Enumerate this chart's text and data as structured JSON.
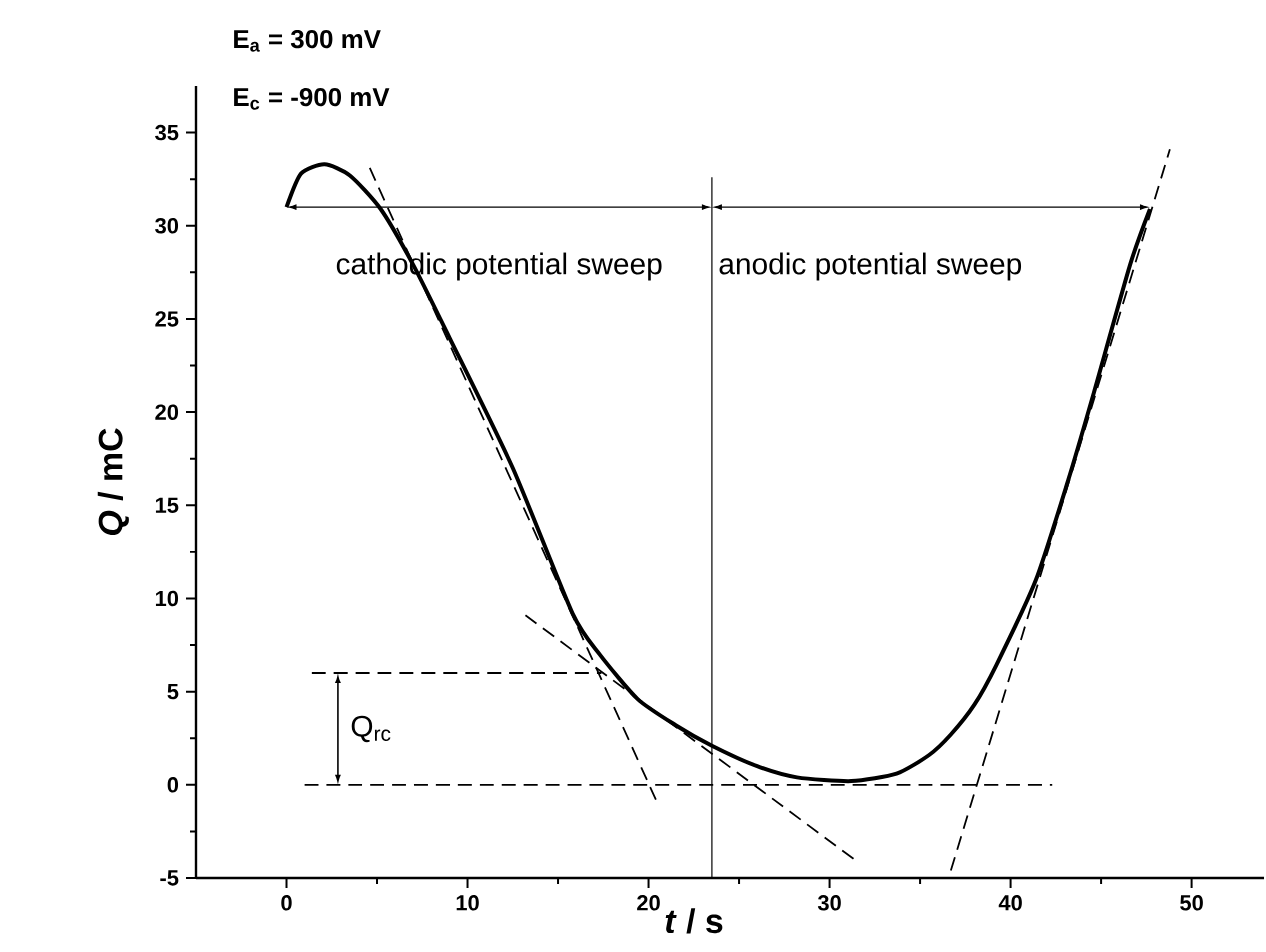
{
  "chart_data": {
    "type": "line",
    "xlabel": "*t* / s",
    "ylabel": "*Q* / mC",
    "xlim": [
      -5,
      54
    ],
    "ylim": [
      -5,
      37.5
    ],
    "xticks": [
      0,
      10,
      20,
      30,
      40,
      50
    ],
    "yticks": [
      -5,
      0,
      5,
      10,
      15,
      20,
      25,
      30,
      35
    ],
    "grid": false,
    "legend": false,
    "marker": "none",
    "series": [
      {
        "color": "#000000",
        "line_style": "solid",
        "x": [
          0,
          0.8,
          2.1,
          3.5,
          5.2,
          7,
          9,
          12.5,
          15.8,
          17.3,
          19.4,
          21.5,
          23.5,
          26,
          28.2,
          31.2,
          33.7,
          35.5,
          36.7,
          38,
          39.2,
          41.4,
          43.2,
          44.5,
          46.6,
          47.7
        ],
        "values": [
          31,
          32.8,
          33.3,
          32.7,
          30.9,
          27.9,
          24,
          17,
          9.2,
          7,
          4.6,
          3.2,
          2.1,
          1,
          0.4,
          0.2,
          0.6,
          1.6,
          2.7,
          4.3,
          6.4,
          11,
          16.4,
          20.7,
          27.9,
          30.9
        ]
      },
      {
        "color": "#000000",
        "line_style": "dashed",
        "x": [
          4.6,
          20.5
        ],
        "values": [
          33.1,
          -1.0
        ]
      },
      {
        "color": "#000000",
        "line_style": "dashed",
        "x": [
          13.2,
          31.5
        ],
        "values": [
          9.1,
          -4.1
        ]
      },
      {
        "color": "#000000",
        "line_style": "dashed",
        "x": [
          1.0,
          42.3
        ],
        "values": [
          0,
          0
        ]
      },
      {
        "color": "#000000",
        "line_style": "dashed",
        "x": [
          36.7,
          48.8
        ],
        "values": [
          -4.6,
          34.1
        ]
      },
      {
        "color": "#000000",
        "line_style": "dashed",
        "x": [
          1.4,
          17.4
        ],
        "values": [
          6,
          6
        ]
      }
    ],
    "ref_lines": [
      {
        "axis": "x",
        "value": 23.5,
        "color": "#000000"
      }
    ],
    "annotations": [
      "E$_{a}$ = 300 mV",
      "E$_{c}$ = -900 mV",
      "cathodic  potential sweep",
      "anodic potential sweep",
      "Q$_{rc}$"
    ]
  }
}
